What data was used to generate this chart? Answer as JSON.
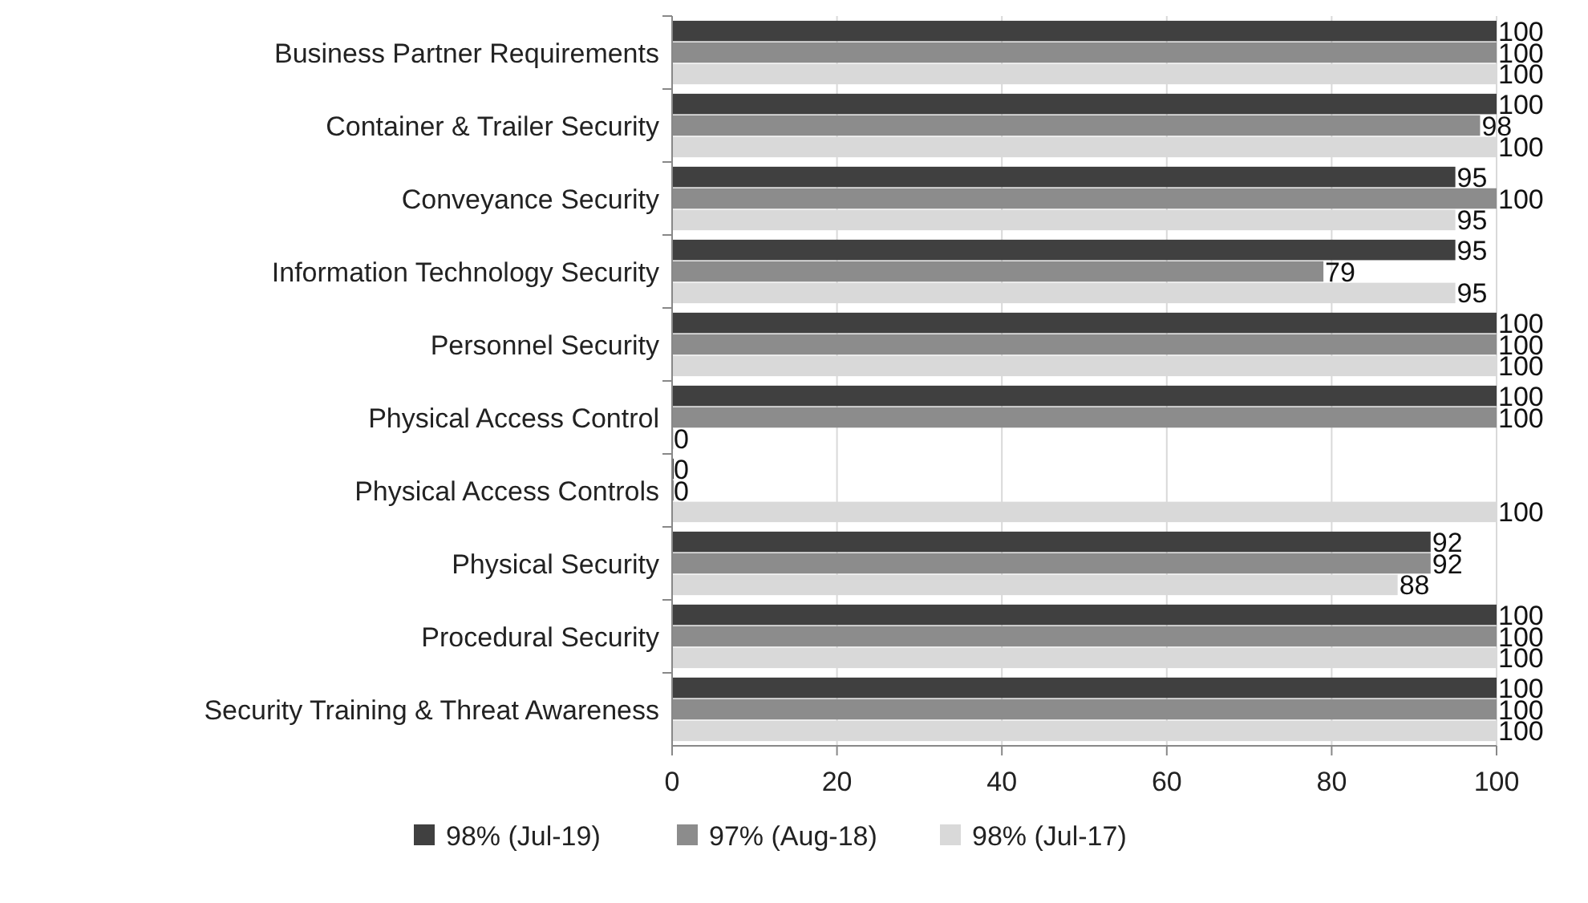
{
  "chart_data": {
    "type": "bar",
    "orientation": "horizontal",
    "categories": [
      "Business Partner Requirements",
      "Container & Trailer Security",
      "Conveyance Security",
      "Information Technology Security",
      "Personnel Security",
      "Physical Access Control",
      "Physical Access Controls",
      "Physical Security",
      "Procedural Security",
      "Security Training & Threat Awareness"
    ],
    "series": [
      {
        "name": "98% (Jul-19)",
        "color": "#404040",
        "values": [
          100,
          100,
          95,
          95,
          100,
          100,
          0,
          92,
          100,
          100
        ]
      },
      {
        "name": "97% (Aug-18)",
        "color": "#8c8c8c",
        "values": [
          100,
          98,
          100,
          79,
          100,
          100,
          0,
          92,
          100,
          100
        ]
      },
      {
        "name": "98% (Jul-17)",
        "color": "#d9d9d9",
        "values": [
          100,
          100,
          95,
          95,
          100,
          0,
          100,
          88,
          100,
          100
        ]
      }
    ],
    "xlim": [
      0,
      100
    ],
    "xticks": [
      0,
      20,
      40,
      60,
      80,
      100
    ],
    "grid": "x",
    "legend": "bottom",
    "data_labels": true
  }
}
